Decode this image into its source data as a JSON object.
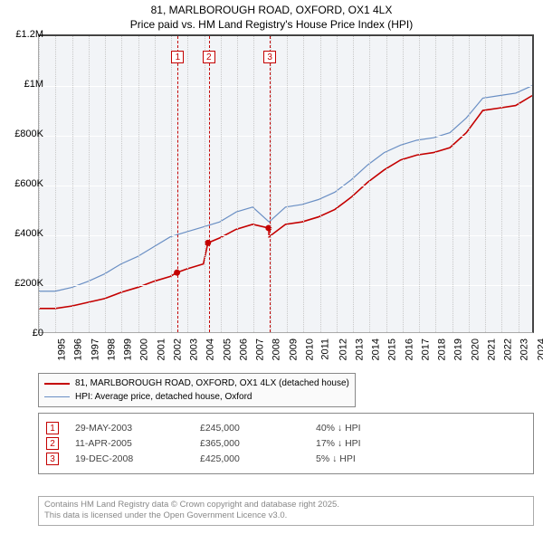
{
  "title": {
    "line1": "81, MARLBOROUGH ROAD, OXFORD, OX1 4LX",
    "line2": "Price paid vs. HM Land Registry's House Price Index (HPI)"
  },
  "chart": {
    "type": "line",
    "background_color": "#f2f4f7",
    "grid_color": "#ffffff",
    "border_color": "#444444",
    "y": {
      "min": 0,
      "max": 1200000,
      "ticks": [
        0,
        200000,
        400000,
        600000,
        800000,
        1000000,
        1200000
      ],
      "labels": [
        "£0",
        "£200K",
        "£400K",
        "£600K",
        "£800K",
        "£1M",
        "£1.2M"
      ],
      "fontsize": 11
    },
    "x": {
      "min": 1995,
      "max": 2025,
      "ticks": [
        1995,
        1996,
        1997,
        1998,
        1999,
        2000,
        2001,
        2002,
        2003,
        2004,
        2005,
        2006,
        2007,
        2008,
        2009,
        2010,
        2011,
        2012,
        2013,
        2014,
        2015,
        2016,
        2017,
        2018,
        2019,
        2020,
        2021,
        2022,
        2023,
        2024
      ],
      "fontsize": 11
    },
    "series_hpi": {
      "label": "HPI: Average price, detached house, Oxford",
      "color": "#6a8fc4",
      "line_width": 1.2,
      "points": [
        [
          1995,
          170000
        ],
        [
          1996,
          170000
        ],
        [
          1997,
          185000
        ],
        [
          1998,
          210000
        ],
        [
          1999,
          240000
        ],
        [
          2000,
          280000
        ],
        [
          2001,
          310000
        ],
        [
          2002,
          350000
        ],
        [
          2003,
          390000
        ],
        [
          2004,
          410000
        ],
        [
          2005,
          430000
        ],
        [
          2006,
          450000
        ],
        [
          2007,
          490000
        ],
        [
          2008,
          510000
        ],
        [
          2009,
          450000
        ],
        [
          2010,
          510000
        ],
        [
          2011,
          520000
        ],
        [
          2012,
          540000
        ],
        [
          2013,
          570000
        ],
        [
          2014,
          620000
        ],
        [
          2015,
          680000
        ],
        [
          2016,
          730000
        ],
        [
          2017,
          760000
        ],
        [
          2018,
          780000
        ],
        [
          2019,
          790000
        ],
        [
          2020,
          810000
        ],
        [
          2021,
          870000
        ],
        [
          2022,
          950000
        ],
        [
          2023,
          960000
        ],
        [
          2024,
          970000
        ],
        [
          2025,
          1000000
        ]
      ]
    },
    "series_property": {
      "label": "81, MARLBOROUGH ROAD, OXFORD, OX1 4LX (detached house)",
      "color": "#c40000",
      "line_width": 1.6,
      "points": [
        [
          1995,
          100000
        ],
        [
          1996,
          100000
        ],
        [
          1997,
          110000
        ],
        [
          1998,
          125000
        ],
        [
          1999,
          140000
        ],
        [
          2000,
          165000
        ],
        [
          2001,
          185000
        ],
        [
          2002,
          210000
        ],
        [
          2003,
          230000
        ],
        [
          2003.4,
          245000
        ],
        [
          2004,
          260000
        ],
        [
          2005,
          280000
        ],
        [
          2005.28,
          365000
        ],
        [
          2006,
          385000
        ],
        [
          2007,
          420000
        ],
        [
          2008,
          440000
        ],
        [
          2008.97,
          425000
        ],
        [
          2009,
          390000
        ],
        [
          2010,
          440000
        ],
        [
          2011,
          450000
        ],
        [
          2012,
          470000
        ],
        [
          2013,
          500000
        ],
        [
          2014,
          550000
        ],
        [
          2015,
          610000
        ],
        [
          2016,
          660000
        ],
        [
          2017,
          700000
        ],
        [
          2018,
          720000
        ],
        [
          2019,
          730000
        ],
        [
          2020,
          750000
        ],
        [
          2021,
          810000
        ],
        [
          2022,
          900000
        ],
        [
          2023,
          910000
        ],
        [
          2024,
          920000
        ],
        [
          2025,
          960000
        ]
      ]
    },
    "markers": [
      {
        "n": "1",
        "year": 2003.4,
        "price": 245000
      },
      {
        "n": "2",
        "year": 2005.28,
        "price": 365000
      },
      {
        "n": "3",
        "year": 2008.97,
        "price": 425000
      }
    ]
  },
  "legend": {
    "items": [
      {
        "color": "#c40000",
        "width": 2,
        "label_key": "chart.series_property.label"
      },
      {
        "color": "#6a8fc4",
        "width": 1.2,
        "label_key": "chart.series_hpi.label"
      }
    ]
  },
  "transactions": [
    {
      "n": "1",
      "date": "29-MAY-2003",
      "price": "£245,000",
      "delta": "40% ↓ HPI"
    },
    {
      "n": "2",
      "date": "11-APR-2005",
      "price": "£365,000",
      "delta": "17% ↓ HPI"
    },
    {
      "n": "3",
      "date": "19-DEC-2008",
      "price": "£425,000",
      "delta": "5% ↓ HPI"
    }
  ],
  "attribution": {
    "line1": "Contains HM Land Registry data © Crown copyright and database right 2025.",
    "line2": "This data is licensed under the Open Government Licence v3.0."
  }
}
